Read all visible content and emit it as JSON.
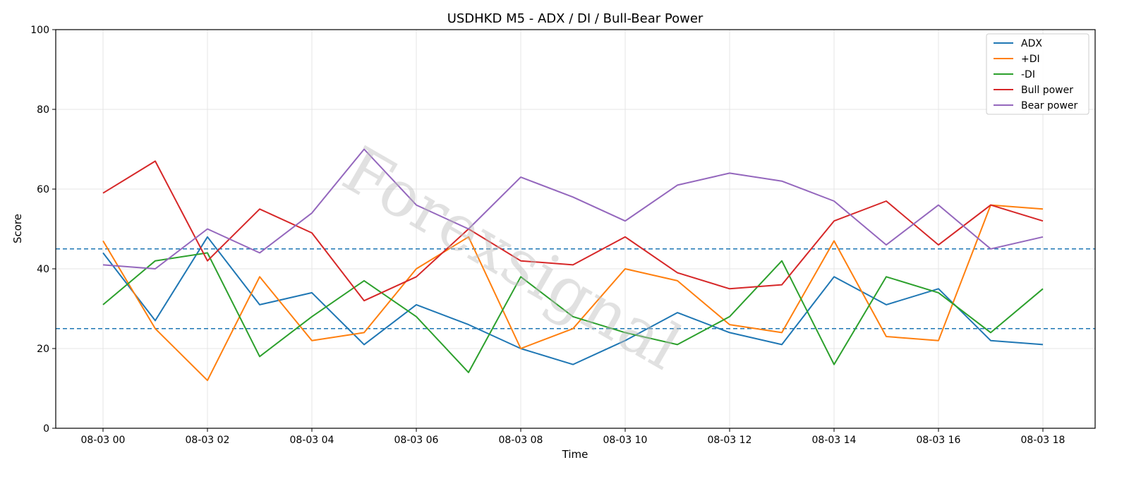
{
  "chart_data": {
    "type": "line",
    "title": "USDHKD M5 - ADX / DI / Bull-Bear Power",
    "xlabel": "Time",
    "ylabel": "Score",
    "ylim": [
      0,
      100
    ],
    "yticks": [
      "0",
      "20",
      "40",
      "60",
      "80",
      "100"
    ],
    "xlim": [
      "08-03 00:00",
      "08-03 18:00"
    ],
    "xticks": [
      "08-03 00",
      "08-03 02",
      "08-03 04",
      "08-03 06",
      "08-03 08",
      "08-03 10",
      "08-03 12",
      "08-03 14",
      "08-03 16",
      "08-03 18"
    ],
    "xtick_times": [
      "08-03 00:00",
      "08-03 02:00",
      "08-03 04:00",
      "08-03 06:00",
      "08-03 08:00",
      "08-03 10:00",
      "08-03 12:00",
      "08-03 14:00",
      "08-03 16:00",
      "08-03 18:00"
    ],
    "grid": true,
    "legend_position": "top-right",
    "reference_lines": [
      45,
      25
    ],
    "reference_color": "#1f77b4",
    "watermark": "Forexsignal",
    "x": [
      "08-03 00:00",
      "08-03 01:00",
      "08-03 02:00",
      "08-03 03:00",
      "08-03 04:00",
      "08-03 05:00",
      "08-03 06:00",
      "08-03 07:00",
      "08-03 08:00",
      "08-03 09:00",
      "08-03 10:00",
      "08-03 11:00",
      "08-03 12:00",
      "08-03 13:00",
      "08-03 14:00",
      "08-03 15:00",
      "08-03 16:00",
      "08-03 17:00",
      "08-03 18:00"
    ],
    "series": [
      {
        "name": "ADX",
        "color": "#1f77b4",
        "values": [
          44,
          27,
          48,
          31,
          34,
          21,
          31,
          26,
          20,
          16,
          22,
          29,
          24,
          21,
          38,
          31,
          35,
          22,
          21
        ]
      },
      {
        "name": "+DI",
        "color": "#ff7f0e",
        "values": [
          47,
          25,
          12,
          38,
          22,
          24,
          40,
          48,
          20,
          25,
          40,
          37,
          26,
          24,
          47,
          23,
          22,
          56,
          55
        ]
      },
      {
        "name": "-DI",
        "color": "#2ca02c",
        "values": [
          31,
          42,
          44,
          18,
          28,
          37,
          28,
          14,
          38,
          28,
          24,
          21,
          28,
          42,
          16,
          38,
          34,
          24,
          35
        ]
      },
      {
        "name": "Bull power",
        "color": "#d62728",
        "values": [
          59,
          67,
          42,
          55,
          49,
          32,
          38,
          50,
          42,
          41,
          48,
          39,
          35,
          36,
          52,
          57,
          46,
          56,
          52
        ]
      },
      {
        "name": "Bear power",
        "color": "#9467bd",
        "values": [
          41,
          40,
          50,
          44,
          54,
          70,
          56,
          50,
          63,
          58,
          52,
          61,
          64,
          62,
          57,
          46,
          56,
          45,
          48
        ]
      }
    ]
  }
}
